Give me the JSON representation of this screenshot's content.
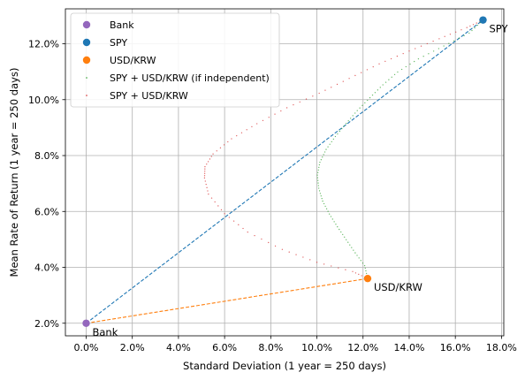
{
  "chart_data": {
    "type": "scatter",
    "xlabel": "Standard Deviation (1 year = 250 days)",
    "ylabel": "Mean Rate of Return (1 year = 250 days)",
    "xlim": [
      -0.9,
      18.1
    ],
    "ylim": [
      1.55,
      13.25
    ],
    "grid": true,
    "legend_position": "top-left",
    "x_tick_values": [
      0,
      2,
      4,
      6,
      8,
      10,
      12,
      14,
      16,
      18
    ],
    "x_tick_labels": [
      "0.0%",
      "2.0%",
      "4.0%",
      "6.0%",
      "8.0%",
      "10.0%",
      "12.0%",
      "14.0%",
      "16.0%",
      "18.0%"
    ],
    "y_tick_values": [
      2,
      4,
      6,
      8,
      10,
      12
    ],
    "y_tick_labels": [
      "2.0%",
      "4.0%",
      "6.0%",
      "8.0%",
      "10.0%",
      "12.0%"
    ],
    "points": [
      {
        "name": "Bank",
        "x": 0.0,
        "y": 2.0,
        "color": "#9467bd",
        "label": "Bank"
      },
      {
        "name": "SPY",
        "x": 17.2,
        "y": 12.85,
        "color": "#1f77b4",
        "label": "SPY"
      },
      {
        "name": "USD/KRW",
        "x": 12.2,
        "y": 3.6,
        "color": "#ff7f0e",
        "label": "USD/KRW"
      }
    ],
    "lines": [
      {
        "from": "Bank",
        "to": "SPY",
        "color": "#1f77b4",
        "style": "dashed"
      },
      {
        "from": "Bank",
        "to": "USD/KRW",
        "color": "#ff7f0e",
        "style": "dashed"
      }
    ],
    "curves": [
      {
        "name": "SPY + USD/KRW (if independent)",
        "color": "#2ca02c",
        "x": [
          12.2,
          12.07,
          11.66,
          11.27,
          10.89,
          10.54,
          10.25,
          10.08,
          10.02,
          10.13,
          10.4,
          10.8,
          11.27,
          11.75,
          12.3,
          12.86,
          13.5,
          14.4,
          15.5,
          16.6,
          17.2
        ],
        "y": [
          3.6,
          4.06,
          4.52,
          4.99,
          5.45,
          5.91,
          6.37,
          6.83,
          7.3,
          7.76,
          8.22,
          8.68,
          9.15,
          9.61,
          10.07,
          10.53,
          10.99,
          11.46,
          11.92,
          12.38,
          12.85
        ]
      },
      {
        "name": "SPY + USD/KRW",
        "color": "#d62728",
        "x": [
          12.2,
          11.55,
          10.0,
          8.5,
          7.0,
          6.0,
          5.3,
          5.13,
          5.15,
          5.5,
          6.3,
          7.4,
          8.7,
          10.1,
          11.4,
          12.7,
          14.0,
          15.3,
          16.5,
          17.2
        ],
        "y": [
          3.6,
          3.85,
          4.18,
          4.64,
          5.26,
          5.92,
          6.62,
          7.2,
          7.6,
          8.06,
          8.6,
          9.14,
          9.71,
          10.23,
          10.76,
          11.28,
          11.74,
          12.18,
          12.58,
          12.85
        ]
      }
    ],
    "legend": [
      {
        "label": "Bank",
        "kind": "marker",
        "color": "#9467bd"
      },
      {
        "label": "SPY",
        "kind": "marker",
        "color": "#1f77b4"
      },
      {
        "label": "USD/KRW",
        "kind": "marker",
        "color": "#ff7f0e"
      },
      {
        "label": "SPY + USD/KRW (if independent)",
        "kind": "dots",
        "color": "#2ca02c"
      },
      {
        "label": "SPY + USD/KRW",
        "kind": "dots",
        "color": "#d62728"
      }
    ]
  }
}
